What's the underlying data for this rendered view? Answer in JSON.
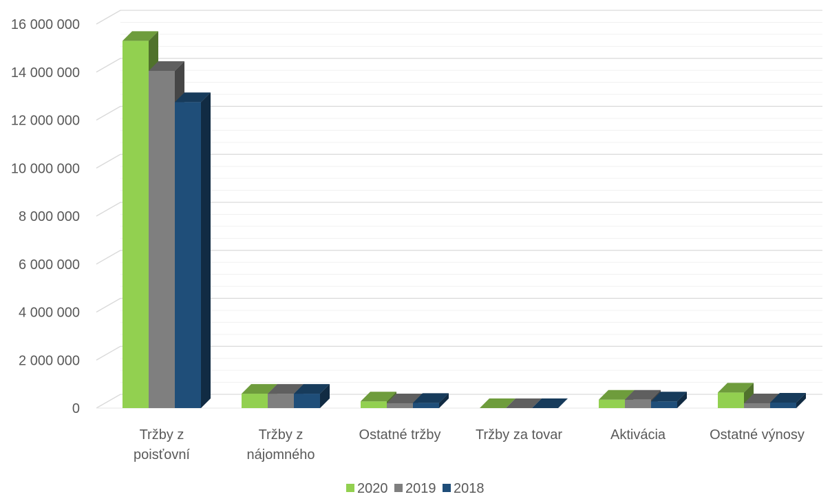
{
  "chart_data": {
    "type": "bar",
    "style": "3d-clustered-column",
    "categories": [
      [
        "Tržby z",
        "poisťovní"
      ],
      [
        "Tržby z",
        "nájomného"
      ],
      [
        "Ostatné tržby"
      ],
      [
        "Tržby za tovar"
      ],
      [
        "Aktivácia"
      ],
      [
        "Ostatné výnosy"
      ]
    ],
    "series": [
      {
        "name": "2020",
        "color": "#92d050",
        "values": [
          15300000,
          600000,
          280000,
          0,
          350000,
          650000
        ]
      },
      {
        "name": "2019",
        "color": "#7f7f7f",
        "values": [
          14050000,
          600000,
          200000,
          0,
          350000,
          200000
        ]
      },
      {
        "name": "2018",
        "color": "#1f4e79",
        "values": [
          12750000,
          600000,
          220000,
          0,
          280000,
          230000
        ]
      }
    ],
    "yticks": [
      "0",
      "2 000 000",
      "4 000 000",
      "6 000 000",
      "8 000 000",
      "10 000 000",
      "12 000 000",
      "14 000 000",
      "16 000 000"
    ],
    "ylim": [
      0,
      16000000
    ],
    "ystep": 2000000,
    "grid": true,
    "legend": "bottom-center",
    "title": "",
    "xlabel": "",
    "ylabel": ""
  }
}
